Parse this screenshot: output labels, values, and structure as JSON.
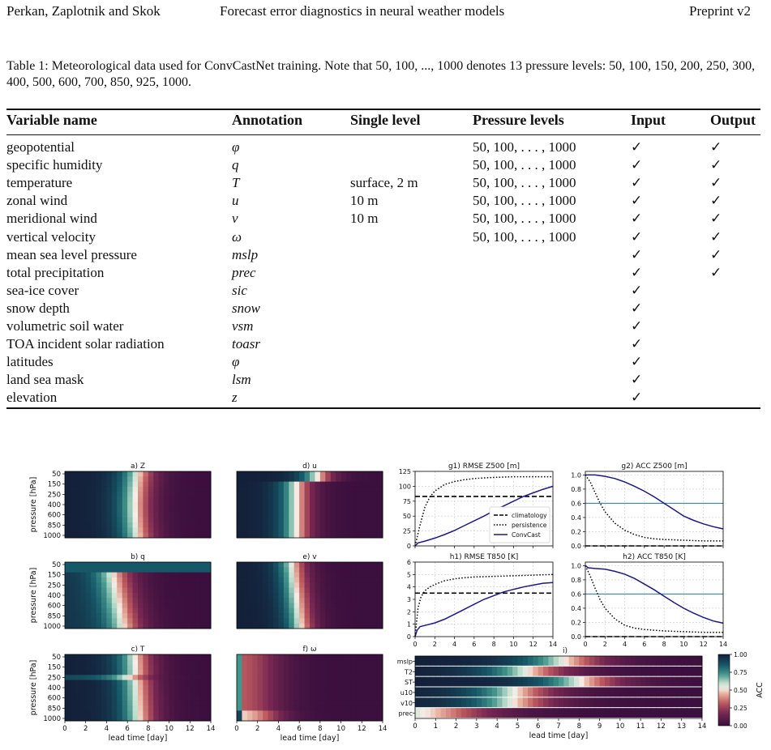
{
  "header": {
    "authors": "Perkan, Zaplotnik and Skok",
    "title": "Forecast error diagnostics in neural weather models",
    "version": "Preprint v2"
  },
  "caption": "Table 1: Meteorological data used for ConvCastNet training. Note that 50, 100, ..., 1000 denotes 13 pressure levels: 50, 100, 150, 200, 250, 300, 400, 500, 600, 700, 850, 925, 1000.",
  "table": {
    "columns": [
      "Variable name",
      "Annotation",
      "Single level",
      "Pressure levels",
      "Input",
      "Output"
    ],
    "rows": [
      {
        "name": "geopotential",
        "ann": "φ",
        "single": "",
        "pressure": "50, 100, . . . , 1000",
        "input": "✓",
        "output": "✓"
      },
      {
        "name": "specific humidity",
        "ann": "q",
        "single": "",
        "pressure": "50, 100, . . . , 1000",
        "input": "✓",
        "output": "✓"
      },
      {
        "name": "temperature",
        "ann": "T",
        "single": "surface, 2 m",
        "pressure": "50, 100, . . . , 1000",
        "input": "✓",
        "output": "✓"
      },
      {
        "name": "zonal wind",
        "ann": "u",
        "single": "10 m",
        "pressure": "50, 100, . . . , 1000",
        "input": "✓",
        "output": "✓"
      },
      {
        "name": "meridional wind",
        "ann": "v",
        "single": "10 m",
        "pressure": "50, 100, . . . , 1000",
        "input": "✓",
        "output": "✓"
      },
      {
        "name": "vertical velocity",
        "ann": "ω",
        "single": "",
        "pressure": "50, 100, . . . , 1000",
        "input": "✓",
        "output": "✓"
      },
      {
        "name": "mean sea level pressure",
        "ann": "mslp",
        "single": "",
        "pressure": "",
        "input": "✓",
        "output": "✓"
      },
      {
        "name": "total precipitation",
        "ann": "prec",
        "single": "",
        "pressure": "",
        "input": "✓",
        "output": "✓"
      },
      {
        "name": "sea-ice cover",
        "ann": "sic",
        "single": "",
        "pressure": "",
        "input": "✓",
        "output": ""
      },
      {
        "name": "snow depth",
        "ann": "snow",
        "single": "",
        "pressure": "",
        "input": "✓",
        "output": ""
      },
      {
        "name": "volumetric soil water",
        "ann": "vsm",
        "single": "",
        "pressure": "",
        "input": "✓",
        "output": ""
      },
      {
        "name": "TOA incident solar radiation",
        "ann": "toasr",
        "single": "",
        "pressure": "",
        "input": "✓",
        "output": ""
      },
      {
        "name": "latitudes",
        "ann": "φ",
        "single": "",
        "pressure": "",
        "input": "✓",
        "output": ""
      },
      {
        "name": "land sea mask",
        "ann": "lsm",
        "single": "",
        "pressure": "",
        "input": "✓",
        "output": ""
      },
      {
        "name": "elevation",
        "ann": "z",
        "single": "",
        "pressure": "",
        "input": "✓",
        "output": ""
      }
    ]
  },
  "chart_data": [
    {
      "type": "heatmap",
      "title": "a) Z",
      "ylabel": "pressure [hPa]",
      "xlabel": "",
      "yticks": [
        "50",
        "150",
        "250",
        "400",
        "600",
        "850",
        "1000"
      ],
      "xlim": [
        0,
        14
      ],
      "kind": "Z"
    },
    {
      "type": "heatmap",
      "title": "b) q",
      "ylabel": "pressure [hPa]",
      "xlabel": "",
      "yticks": [
        "50",
        "150",
        "250",
        "400",
        "600",
        "850",
        "1000"
      ],
      "xlim": [
        0,
        14
      ],
      "kind": "q"
    },
    {
      "type": "heatmap",
      "title": "c) T",
      "ylabel": "pressure [hPa]",
      "xlabel": "lead time [day]",
      "yticks": [
        "50",
        "150",
        "250",
        "400",
        "600",
        "850",
        "1000"
      ],
      "xticks": [
        "0",
        "2",
        "4",
        "6",
        "8",
        "10",
        "12",
        "14"
      ],
      "xlim": [
        0,
        14
      ],
      "kind": "T"
    },
    {
      "type": "heatmap",
      "title": "d) u",
      "ylabel": "",
      "xlabel": "",
      "xlim": [
        0,
        14
      ],
      "kind": "u"
    },
    {
      "type": "heatmap",
      "title": "e) v",
      "ylabel": "",
      "xlabel": "",
      "xlim": [
        0,
        14
      ],
      "kind": "v"
    },
    {
      "type": "heatmap",
      "title": "f) ω",
      "ylabel": "",
      "xlabel": "lead time [day]",
      "xticks": [
        "0",
        "2",
        "4",
        "6",
        "8",
        "10",
        "12",
        "14"
      ],
      "xlim": [
        0,
        14
      ],
      "kind": "w"
    },
    {
      "type": "line",
      "title": "g1) RMSE Z500 [m]",
      "ylim": [
        0,
        125
      ],
      "yticks": [
        "0",
        "25",
        "50",
        "75",
        "100",
        "125"
      ],
      "xlim": [
        0,
        14
      ],
      "grid": true,
      "legend": "bottom-right",
      "series": [
        {
          "name": "climatology",
          "style": "dashed",
          "x": [
            0,
            14
          ],
          "y": [
            83,
            83
          ]
        },
        {
          "name": "persistence",
          "style": "dotted",
          "x": [
            0,
            0.5,
            1,
            1.5,
            2,
            3,
            4,
            5,
            6,
            8,
            10,
            12,
            14
          ],
          "y": [
            0,
            35,
            65,
            82,
            92,
            103,
            108,
            111,
            113,
            115,
            116,
            116,
            116
          ]
        },
        {
          "name": "ConvCast",
          "style": "solid",
          "x": [
            0,
            0.3,
            1,
            2,
            3,
            4,
            5,
            6,
            7,
            8,
            9,
            10,
            11,
            12,
            13,
            14
          ],
          "y": [
            0,
            5,
            8,
            13,
            19,
            26,
            34,
            42,
            50,
            59,
            67,
            75,
            83,
            89,
            95,
            100
          ]
        }
      ]
    },
    {
      "type": "line",
      "title": "g2) ACC Z500 [m]",
      "ylim": [
        0,
        1.05
      ],
      "yticks": [
        "0.0",
        "0.2",
        "0.4",
        "0.6",
        "0.8",
        "1.0"
      ],
      "xlim": [
        0,
        14
      ],
      "grid": true,
      "series": [
        {
          "name": "",
          "style": "blue-thin",
          "x": [
            0,
            14
          ],
          "y": [
            0.6,
            0.6
          ]
        },
        {
          "name": "climatology",
          "style": "dashed",
          "x": [
            0,
            14
          ],
          "y": [
            0,
            0
          ]
        },
        {
          "name": "persistence",
          "style": "dotted",
          "x": [
            0,
            0.5,
            1,
            1.5,
            2,
            3,
            4,
            5,
            6,
            7,
            8,
            10,
            12,
            14
          ],
          "y": [
            1.0,
            0.9,
            0.75,
            0.6,
            0.48,
            0.32,
            0.22,
            0.16,
            0.12,
            0.1,
            0.09,
            0.08,
            0.07,
            0.07
          ]
        },
        {
          "name": "ConvCast",
          "style": "solid",
          "x": [
            0,
            1,
            2,
            3,
            4,
            5,
            6,
            7,
            8,
            9,
            10,
            11,
            12,
            13,
            14
          ],
          "y": [
            1.0,
            1.0,
            0.98,
            0.95,
            0.9,
            0.84,
            0.77,
            0.69,
            0.6,
            0.51,
            0.42,
            0.36,
            0.31,
            0.27,
            0.24
          ]
        }
      ]
    },
    {
      "type": "line",
      "title": "h1) RMSE T850 [K]",
      "ylim": [
        0,
        6
      ],
      "yticks": [
        "0",
        "1",
        "2",
        "3",
        "4",
        "5",
        "6"
      ],
      "xlim": [
        0,
        14
      ],
      "xticks": [
        "0",
        "2",
        "4",
        "6",
        "8",
        "10",
        "12",
        "14"
      ],
      "grid": true,
      "series": [
        {
          "name": "climatology",
          "style": "dashed",
          "x": [
            0,
            14
          ],
          "y": [
            3.5,
            3.5
          ]
        },
        {
          "name": "persistence",
          "style": "dotted",
          "x": [
            0,
            0.3,
            0.6,
            1,
            1.5,
            2,
            3,
            4,
            5,
            6,
            8,
            10,
            12,
            14
          ],
          "y": [
            0,
            2.3,
            3.2,
            3.7,
            4.0,
            4.2,
            4.5,
            4.65,
            4.75,
            4.8,
            4.85,
            4.9,
            4.95,
            5.0
          ]
        },
        {
          "name": "ConvCast",
          "style": "solid",
          "x": [
            0,
            0.2,
            0.5,
            1,
            2,
            3,
            4,
            5,
            6,
            7,
            8,
            9,
            10,
            11,
            12,
            13,
            14
          ],
          "y": [
            0,
            0.5,
            0.8,
            0.9,
            1.1,
            1.4,
            1.8,
            2.2,
            2.6,
            3.0,
            3.3,
            3.6,
            3.8,
            4.0,
            4.15,
            4.3,
            4.35
          ]
        }
      ]
    },
    {
      "type": "line",
      "title": "h2) ACC T850 [K]",
      "ylim": [
        0,
        1.05
      ],
      "yticks": [
        "0.0",
        "0.2",
        "0.4",
        "0.6",
        "0.8",
        "1.0"
      ],
      "xlim": [
        0,
        14
      ],
      "xticks": [
        "0",
        "2",
        "4",
        "6",
        "8",
        "10",
        "12",
        "14"
      ],
      "grid": true,
      "series": [
        {
          "name": "",
          "style": "blue-thin",
          "x": [
            0,
            14
          ],
          "y": [
            0.6,
            0.6
          ]
        },
        {
          "name": "climatology",
          "style": "dashed",
          "x": [
            0,
            14
          ],
          "y": [
            0,
            0
          ]
        },
        {
          "name": "persistence",
          "style": "dotted",
          "x": [
            0,
            0.5,
            1,
            1.5,
            2,
            3,
            4,
            5,
            6,
            7,
            8,
            10,
            12,
            14
          ],
          "y": [
            1.0,
            0.85,
            0.68,
            0.52,
            0.4,
            0.25,
            0.16,
            0.12,
            0.1,
            0.09,
            0.08,
            0.07,
            0.06,
            0.06
          ]
        },
        {
          "name": "ConvCast",
          "style": "solid",
          "x": [
            0,
            0.3,
            1,
            2,
            3,
            4,
            5,
            6,
            7,
            8,
            9,
            10,
            11,
            12,
            13,
            14
          ],
          "y": [
            1.0,
            0.97,
            0.96,
            0.95,
            0.92,
            0.88,
            0.82,
            0.74,
            0.66,
            0.57,
            0.48,
            0.4,
            0.33,
            0.27,
            0.22,
            0.19
          ]
        }
      ]
    },
    {
      "type": "heatmap",
      "title": "i)",
      "rows": [
        "mslp",
        "T2",
        "ST",
        "u10",
        "v10",
        "prec"
      ],
      "xticks": [
        "0",
        "1",
        "2",
        "3",
        "4",
        "5",
        "6",
        "7",
        "8",
        "9",
        "10",
        "11",
        "12",
        "13",
        "14"
      ],
      "xlabel": "lead time [day]",
      "xlim": [
        0,
        14
      ],
      "colorbar": {
        "label": "ACC",
        "ticks": [
          "0.00",
          "0.25",
          "0.50",
          "0.75",
          "1.00"
        ],
        "range": [
          0,
          1
        ]
      }
    }
  ]
}
